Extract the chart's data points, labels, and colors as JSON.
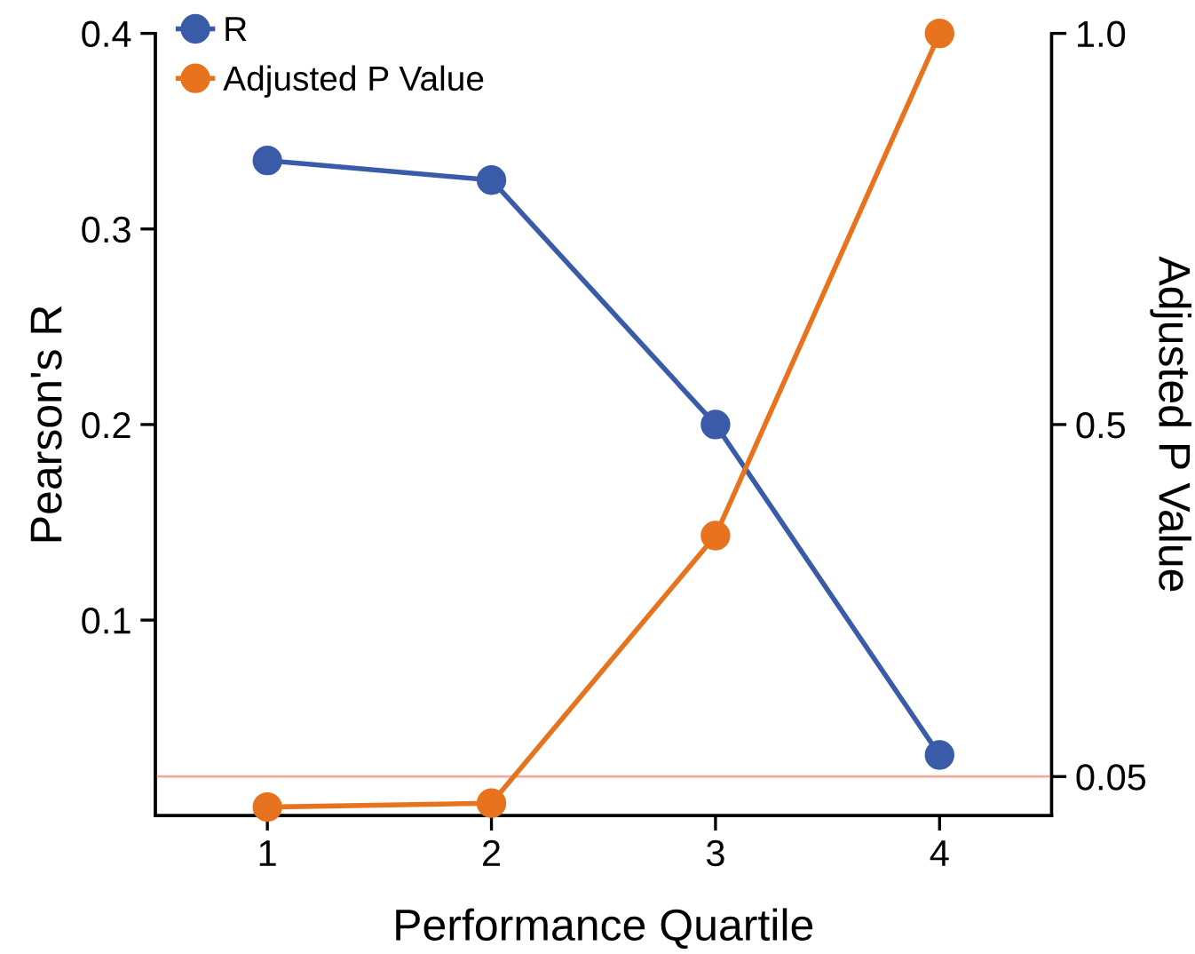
{
  "chart_data": {
    "type": "line",
    "xlabel": "Performance Quartile",
    "ylabel": "Pearson's R",
    "y2label": "Adjusted P Value",
    "categories": [
      "1",
      "2",
      "3",
      "4"
    ],
    "series": [
      {
        "name": "R",
        "color": "#3a5ba8",
        "values": [
          0.335,
          0.325,
          0.2,
          0.031
        ]
      },
      {
        "name": "Adjusted P Value",
        "color": "#e8731e",
        "values": [
          0.011,
          0.016,
          0.358,
          1.0
        ],
        "axis": "y2"
      }
    ],
    "ylim": [
      0,
      0.4
    ],
    "yticks": [
      0.1,
      0.2,
      0.3,
      0.4
    ],
    "y2lim": [
      0,
      1
    ],
    "y2ticks": [
      0.05,
      0.5,
      {
        "value": 1.0,
        "label": "1.0"
      }
    ],
    "ref_lines": [
      {
        "axis": "y2",
        "value": 0.05,
        "color": "#f2a9a0"
      }
    ],
    "marker": "circle",
    "line_style": "solid",
    "legend": "top left",
    "grid": false
  }
}
